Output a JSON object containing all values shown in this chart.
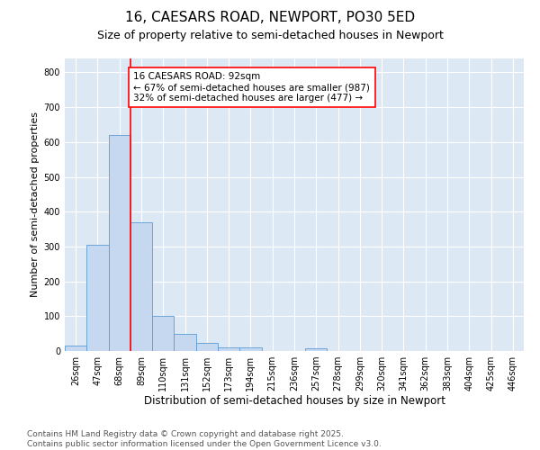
{
  "title1": "16, CAESARS ROAD, NEWPORT, PO30 5ED",
  "title2": "Size of property relative to semi-detached houses in Newport",
  "xlabel": "Distribution of semi-detached houses by size in Newport",
  "ylabel": "Number of semi-detached properties",
  "bar_labels": [
    "26sqm",
    "47sqm",
    "68sqm",
    "89sqm",
    "110sqm",
    "131sqm",
    "152sqm",
    "173sqm",
    "194sqm",
    "215sqm",
    "236sqm",
    "257sqm",
    "278sqm",
    "299sqm",
    "320sqm",
    "341sqm",
    "362sqm",
    "383sqm",
    "404sqm",
    "425sqm",
    "446sqm"
  ],
  "bar_values": [
    15,
    305,
    620,
    370,
    100,
    50,
    22,
    10,
    10,
    0,
    0,
    8,
    0,
    0,
    0,
    0,
    0,
    0,
    0,
    0,
    0
  ],
  "bar_color": "#c5d8f0",
  "bar_edge_color": "#5b9bd5",
  "vline_color": "red",
  "annotation_text": "16 CAESARS ROAD: 92sqm\n← 67% of semi-detached houses are smaller (987)\n32% of semi-detached houses are larger (477) →",
  "annotation_box_color": "white",
  "annotation_box_edge": "red",
  "ylim": [
    0,
    840
  ],
  "yticks": [
    0,
    100,
    200,
    300,
    400,
    500,
    600,
    700,
    800
  ],
  "background_color": "#dde8f5",
  "footnote": "Contains HM Land Registry data © Crown copyright and database right 2025.\nContains public sector information licensed under the Open Government Licence v3.0.",
  "title1_fontsize": 11,
  "title2_fontsize": 9,
  "xlabel_fontsize": 8.5,
  "ylabel_fontsize": 8,
  "tick_fontsize": 7,
  "annotation_fontsize": 7.5,
  "footnote_fontsize": 6.5
}
